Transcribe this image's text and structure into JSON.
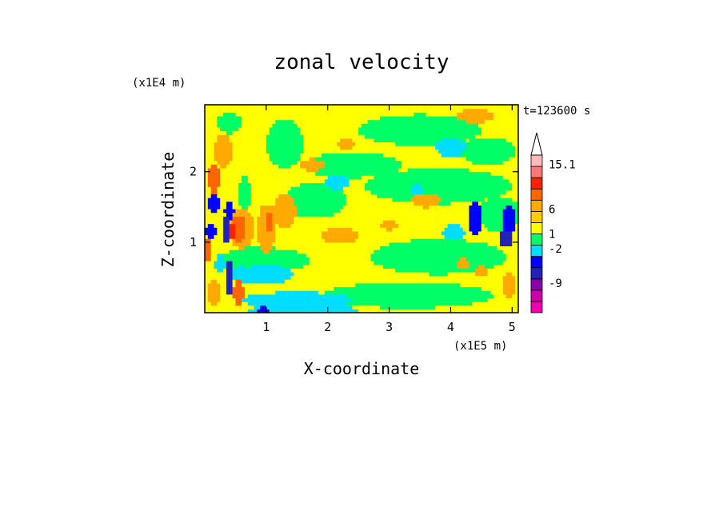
{
  "chart_data": {
    "type": "heatmap",
    "title": "zonal velocity",
    "xlabel": "X-coordinate",
    "ylabel": "Z-coordinate",
    "x_unit": "(x1E5 m)",
    "y_unit": "(x1E4 m)",
    "time_label": "t=123600 s",
    "xlim": [
      0,
      5.1
    ],
    "ylim": [
      0,
      2.95
    ],
    "x_ticks": [
      {
        "value": 1,
        "label": "1"
      },
      {
        "value": 2,
        "label": "2"
      },
      {
        "value": 3,
        "label": "3"
      },
      {
        "value": 4,
        "label": "4"
      },
      {
        "value": 5,
        "label": "5"
      }
    ],
    "y_ticks": [
      {
        "value": 1,
        "label": "1"
      },
      {
        "value": 2,
        "label": "2"
      }
    ],
    "colorbar": {
      "bins": [
        {
          "color": "#ee00aa"
        },
        {
          "color": "#cc00aa"
        },
        {
          "color": "#8800aa"
        },
        {
          "color": "#2222bb"
        },
        {
          "color": "#0000ff"
        },
        {
          "color": "#00ddff"
        },
        {
          "color": "#00ff66"
        },
        {
          "color": "#ffff00"
        },
        {
          "color": "#ffcc00"
        },
        {
          "color": "#ffaa00"
        },
        {
          "color": "#ff6600"
        },
        {
          "color": "#ff2200"
        },
        {
          "color": "#ff7777"
        },
        {
          "color": "#ffbbbb"
        }
      ],
      "labels": [
        {
          "text": "15.1",
          "value": 15.1
        },
        {
          "text": "6",
          "value": 6
        },
        {
          "text": "1",
          "value": 1
        },
        {
          "text": "-2",
          "value": -2
        },
        {
          "text": "-9",
          "value": -9
        }
      ],
      "overflow_arrow": "top"
    },
    "field": {
      "nx": 102,
      "ny": 56,
      "background_color": "#ffff00",
      "blobs": [
        {
          "x": 0.95,
          "y": 0.75,
          "rx": 0.75,
          "ry": 0.18,
          "color": "#00ff66"
        },
        {
          "x": 0.9,
          "y": 0.55,
          "rx": 0.55,
          "ry": 0.14,
          "color": "#00ddff"
        },
        {
          "x": 3.8,
          "y": 1.8,
          "rx": 1.2,
          "ry": 0.25,
          "color": "#00ff66"
        },
        {
          "x": 2.4,
          "y": 2.1,
          "rx": 0.8,
          "ry": 0.18,
          "color": "#00ff66"
        },
        {
          "x": 3.5,
          "y": 2.6,
          "rx": 1.0,
          "ry": 0.22,
          "color": "#00ff66"
        },
        {
          "x": 3.8,
          "y": 0.8,
          "rx": 1.1,
          "ry": 0.25,
          "color": "#00ff66"
        },
        {
          "x": 3.3,
          "y": 0.25,
          "rx": 1.4,
          "ry": 0.18,
          "color": "#00ff66"
        },
        {
          "x": 1.3,
          "y": 2.4,
          "rx": 0.3,
          "ry": 0.35,
          "color": "#00ff66"
        },
        {
          "x": 1.8,
          "y": 1.6,
          "rx": 0.5,
          "ry": 0.25,
          "color": "#00ff66"
        },
        {
          "x": 4.6,
          "y": 2.3,
          "rx": 0.45,
          "ry": 0.2,
          "color": "#00ff66"
        },
        {
          "x": 4.8,
          "y": 1.4,
          "rx": 0.35,
          "ry": 0.25,
          "color": "#00ff66"
        },
        {
          "x": 1.5,
          "y": 0.18,
          "rx": 0.9,
          "ry": 0.12,
          "color": "#00ddff"
        },
        {
          "x": 1.6,
          "y": 0.04,
          "rx": 0.9,
          "ry": 0.08,
          "color": "#00ddff"
        },
        {
          "x": 0.95,
          "y": 0.05,
          "rx": 0.08,
          "ry": 0.07,
          "color": "#0000ff"
        },
        {
          "x": 4.0,
          "y": 2.35,
          "rx": 0.25,
          "ry": 0.13,
          "color": "#00ddff"
        },
        {
          "x": 4.05,
          "y": 1.15,
          "rx": 0.18,
          "ry": 0.1,
          "color": "#00ddff"
        },
        {
          "x": 2.15,
          "y": 1.85,
          "rx": 0.2,
          "ry": 0.1,
          "color": "#00ddff"
        },
        {
          "x": 3.45,
          "y": 1.75,
          "rx": 0.12,
          "ry": 0.08,
          "color": "#00ddff"
        },
        {
          "x": 4.4,
          "y": 1.35,
          "rx": 0.12,
          "ry": 0.25,
          "color": "#0000ff"
        },
        {
          "x": 4.95,
          "y": 1.3,
          "rx": 0.1,
          "ry": 0.25,
          "color": "#0000ff"
        },
        {
          "x": 4.9,
          "y": 1.05,
          "rx": 0.12,
          "ry": 0.12,
          "color": "#2222bb"
        },
        {
          "x": 2.2,
          "y": 1.1,
          "rx": 0.3,
          "ry": 0.12,
          "color": "#ffaa00"
        },
        {
          "x": 1.75,
          "y": 2.1,
          "rx": 0.2,
          "ry": 0.09,
          "color": "#ffaa00"
        },
        {
          "x": 2.3,
          "y": 2.4,
          "rx": 0.15,
          "ry": 0.08,
          "color": "#ffaa00"
        },
        {
          "x": 3.6,
          "y": 1.6,
          "rx": 0.25,
          "ry": 0.1,
          "color": "#ffaa00"
        },
        {
          "x": 3.0,
          "y": 1.25,
          "rx": 0.15,
          "ry": 0.07,
          "color": "#ffaa00"
        },
        {
          "x": 4.4,
          "y": 2.8,
          "rx": 0.3,
          "ry": 0.1,
          "color": "#ffaa00"
        },
        {
          "x": 4.5,
          "y": 0.6,
          "rx": 0.1,
          "ry": 0.08,
          "color": "#ffaa00"
        },
        {
          "x": 4.95,
          "y": 0.4,
          "rx": 0.1,
          "ry": 0.2,
          "color": "#ffaa00"
        },
        {
          "x": 4.2,
          "y": 0.7,
          "rx": 0.12,
          "ry": 0.08,
          "color": "#ffaa00"
        },
        {
          "x": 1.3,
          "y": 1.45,
          "rx": 0.18,
          "ry": 0.25,
          "color": "#ffaa00"
        },
        {
          "x": 1.0,
          "y": 1.2,
          "rx": 0.15,
          "ry": 0.35,
          "color": "#ffaa00"
        },
        {
          "x": 0.6,
          "y": 1.2,
          "rx": 0.2,
          "ry": 0.3,
          "color": "#ffaa00"
        },
        {
          "x": 0.55,
          "y": 1.2,
          "rx": 0.12,
          "ry": 0.2,
          "color": "#ff6600"
        },
        {
          "x": 1.05,
          "y": 1.3,
          "rx": 0.07,
          "ry": 0.15,
          "color": "#ff6600"
        },
        {
          "x": 0.45,
          "y": 1.15,
          "rx": 0.06,
          "ry": 0.12,
          "color": "#ff2200"
        },
        {
          "x": 0.3,
          "y": 2.3,
          "rx": 0.15,
          "ry": 0.25,
          "color": "#ffaa00"
        },
        {
          "x": 0.15,
          "y": 1.9,
          "rx": 0.1,
          "ry": 0.2,
          "color": "#ff6600"
        },
        {
          "x": 0.4,
          "y": 2.7,
          "rx": 0.2,
          "ry": 0.15,
          "color": "#00ff66"
        },
        {
          "x": 0.15,
          "y": 1.55,
          "rx": 0.12,
          "ry": 0.12,
          "color": "#0000ff"
        },
        {
          "x": 0.4,
          "y": 1.45,
          "rx": 0.08,
          "ry": 0.12,
          "color": "#0000ff"
        },
        {
          "x": 0.35,
          "y": 1.2,
          "rx": 0.06,
          "ry": 0.2,
          "color": "#2222bb"
        },
        {
          "x": 0.1,
          "y": 1.15,
          "rx": 0.1,
          "ry": 0.1,
          "color": "#0000ff"
        },
        {
          "x": 0.4,
          "y": 0.5,
          "rx": 0.05,
          "ry": 0.3,
          "color": "#2222bb"
        },
        {
          "x": 0.25,
          "y": 0.7,
          "rx": 0.08,
          "ry": 0.15,
          "color": "#00ddff"
        },
        {
          "x": 0.15,
          "y": 0.3,
          "rx": 0.1,
          "ry": 0.2,
          "color": "#ffaa00"
        },
        {
          "x": 0.55,
          "y": 0.3,
          "rx": 0.08,
          "ry": 0.2,
          "color": "#ff6600"
        },
        {
          "x": 0.05,
          "y": 0.9,
          "rx": 0.05,
          "ry": 0.2,
          "color": "#ff6600"
        },
        {
          "x": 0.7,
          "y": 0.8,
          "rx": 0.1,
          "ry": 0.15,
          "color": "#00ff66"
        },
        {
          "x": 0.65,
          "y": 1.7,
          "rx": 0.1,
          "ry": 0.25,
          "color": "#00ff66"
        }
      ]
    }
  }
}
